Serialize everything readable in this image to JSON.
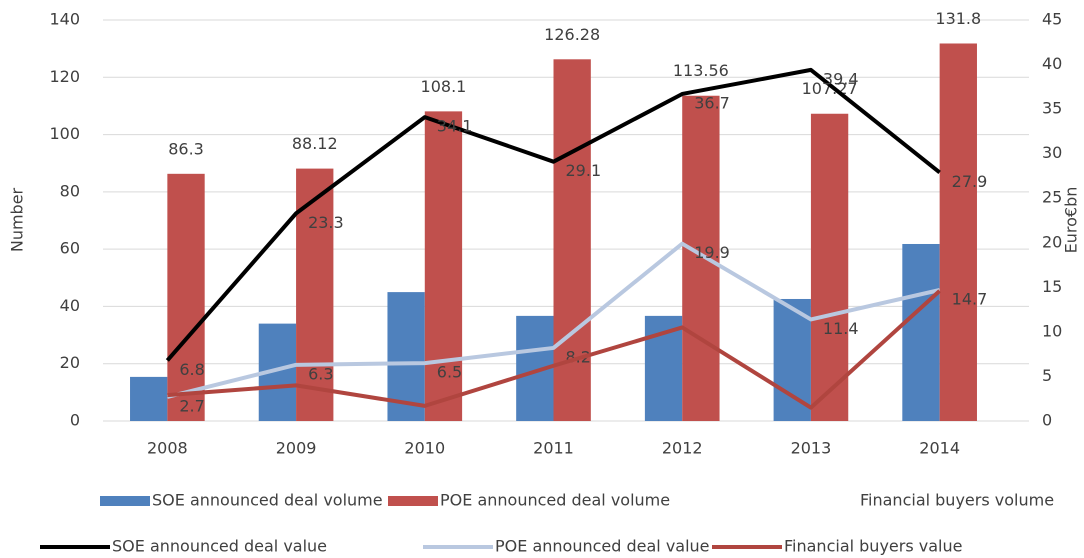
{
  "chart_data": {
    "type": "bar_line_combo",
    "categories": [
      "2008",
      "2009",
      "2010",
      "2011",
      "2012",
      "2013",
      "2014"
    ],
    "y_label": "Number",
    "y2_label": "Euro€bn",
    "ylim": [
      0,
      140
    ],
    "yticks": [
      0,
      20,
      40,
      60,
      80,
      100,
      120,
      140
    ],
    "y2lim": [
      0,
      45
    ],
    "y2ticks": [
      0,
      5,
      10,
      15,
      20,
      25,
      30,
      35,
      40,
      45
    ],
    "grid": true,
    "legend": "bottom",
    "series": [
      {
        "name": "SOE announced deal volume",
        "type": "bar",
        "color": "#4f81bd",
        "values": [
          15.4,
          34,
          45,
          36.7,
          36.7,
          42.6,
          61.8
        ]
      },
      {
        "name": "POE announced deal volume",
        "type": "bar",
        "color": "#c0504d",
        "values": [
          86.3,
          88.12,
          108.1,
          126.28,
          113.56,
          107.27,
          131.8
        ],
        "labels": true
      },
      {
        "name": "Financial buyers volume",
        "type": "bar",
        "color": "#ffffff",
        "values": [
          null,
          null,
          null,
          null,
          null,
          null,
          null
        ]
      },
      {
        "name": "SOE announced deal value",
        "type": "line",
        "axis": "y2",
        "color": "#000000",
        "values": [
          6.8,
          23.3,
          34.1,
          29.1,
          36.7,
          39.4,
          27.9
        ],
        "labels": true
      },
      {
        "name": "POE announced deal value",
        "type": "line",
        "axis": "y2",
        "color": "#b9c8e0",
        "values": [
          2.7,
          6.3,
          6.5,
          8.2,
          19.9,
          11.4,
          14.7
        ],
        "labels": true
      },
      {
        "name": "Financial buyers value",
        "type": "line",
        "axis": "y2",
        "color": "#b0453f",
        "values": [
          2.9,
          4.0,
          1.7,
          6.2,
          10.5,
          1.5,
          14.6
        ]
      }
    ]
  }
}
